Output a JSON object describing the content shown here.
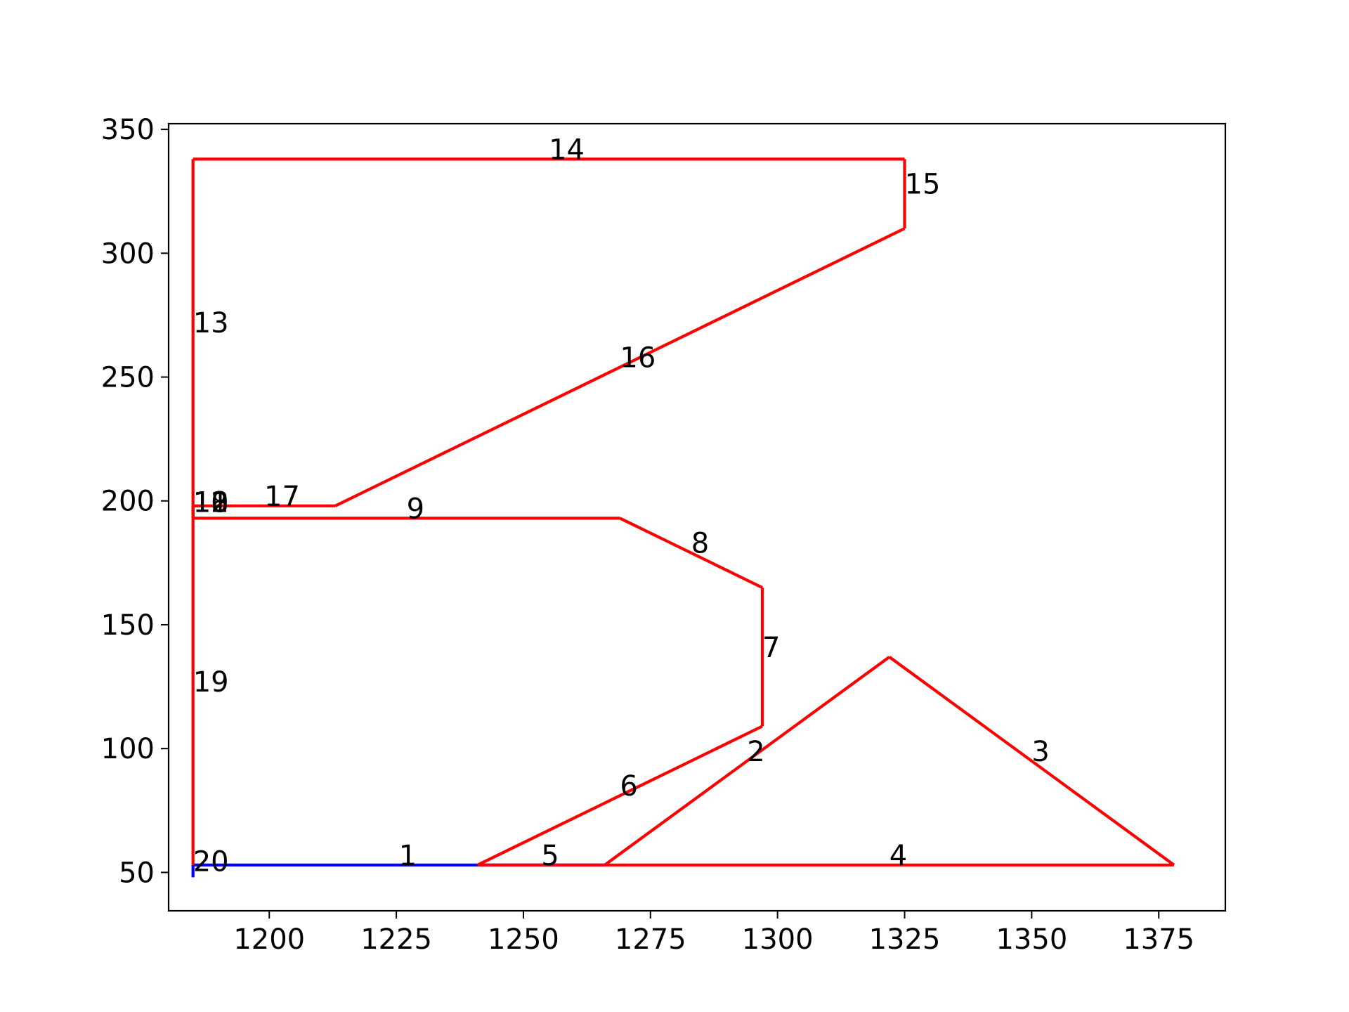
{
  "chart_data": {
    "type": "line",
    "title": "",
    "xlabel": "",
    "ylabel": "",
    "xlim": [
      1180.2,
      1388.1
    ],
    "ylim": [
      34.5,
      352.3
    ],
    "xticks": [
      1200,
      1225,
      1250,
      1275,
      1300,
      1325,
      1350,
      1375
    ],
    "yticks": [
      50,
      100,
      150,
      200,
      250,
      300,
      350
    ],
    "grid": false,
    "legend": "none",
    "colors": {
      "red": "#ff0000",
      "blue": "#0000ff"
    },
    "segments": [
      {
        "id": "1",
        "color": "blue",
        "points": [
          [
            1185,
            53
          ],
          [
            1266,
            53
          ]
        ]
      },
      {
        "id": "2",
        "color": "red",
        "points": [
          [
            1266,
            53
          ],
          [
            1322,
            137
          ]
        ]
      },
      {
        "id": "3",
        "color": "red",
        "points": [
          [
            1322,
            137
          ],
          [
            1378,
            53
          ]
        ]
      },
      {
        "id": "4",
        "color": "red",
        "points": [
          [
            1378,
            53
          ],
          [
            1266,
            53
          ]
        ]
      },
      {
        "id": "5",
        "color": "red",
        "points": [
          [
            1266,
            53
          ],
          [
            1241,
            53
          ]
        ]
      },
      {
        "id": "6",
        "color": "red",
        "points": [
          [
            1241,
            53
          ],
          [
            1297,
            109
          ]
        ]
      },
      {
        "id": "7",
        "color": "red",
        "points": [
          [
            1297,
            109
          ],
          [
            1297,
            165
          ]
        ]
      },
      {
        "id": "8",
        "color": "red",
        "points": [
          [
            1297,
            165
          ],
          [
            1269,
            193
          ]
        ]
      },
      {
        "id": "9",
        "color": "red",
        "points": [
          [
            1269,
            193
          ],
          [
            1185,
            193
          ]
        ]
      },
      {
        "id": "10",
        "color": "blue",
        "points": [
          [
            1185,
            193
          ],
          [
            1185,
            198
          ]
        ]
      },
      {
        "id": "11",
        "color": "red",
        "points": [
          [
            1185,
            193
          ],
          [
            1185,
            198
          ]
        ]
      },
      {
        "id": "12",
        "color": "red",
        "points": [
          [
            1185,
            198
          ],
          [
            1185,
            198
          ]
        ]
      },
      {
        "id": "13",
        "color": "red",
        "points": [
          [
            1185,
            198
          ],
          [
            1185,
            338
          ]
        ]
      },
      {
        "id": "14",
        "color": "red",
        "points": [
          [
            1185,
            338
          ],
          [
            1325,
            338
          ]
        ]
      },
      {
        "id": "15",
        "color": "red",
        "points": [
          [
            1325,
            338
          ],
          [
            1325,
            310
          ]
        ]
      },
      {
        "id": "16",
        "color": "red",
        "points": [
          [
            1325,
            310
          ],
          [
            1213,
            198
          ]
        ]
      },
      {
        "id": "17",
        "color": "red",
        "points": [
          [
            1213,
            198
          ],
          [
            1185,
            198
          ]
        ]
      },
      {
        "id": "18",
        "color": "red",
        "points": [
          [
            1185,
            198
          ],
          [
            1185,
            193
          ]
        ]
      },
      {
        "id": "19",
        "color": "red",
        "points": [
          [
            1185,
            193
          ],
          [
            1185,
            53
          ]
        ]
      },
      {
        "id": "20",
        "color": "blue",
        "points": [
          [
            1185,
            53
          ],
          [
            1185,
            48
          ]
        ]
      }
    ],
    "labels": [
      {
        "text": "1",
        "x": 1225.5,
        "y": 53
      },
      {
        "text": "2",
        "x": 1294,
        "y": 95
      },
      {
        "text": "3",
        "x": 1350,
        "y": 95
      },
      {
        "text": "4",
        "x": 1322,
        "y": 53
      },
      {
        "text": "5",
        "x": 1253.5,
        "y": 53
      },
      {
        "text": "6",
        "x": 1269,
        "y": 81
      },
      {
        "text": "7",
        "x": 1297,
        "y": 137
      },
      {
        "text": "8",
        "x": 1283,
        "y": 179
      },
      {
        "text": "9",
        "x": 1227,
        "y": 193
      },
      {
        "text": "10",
        "x": 1185,
        "y": 195.5
      },
      {
        "text": "11",
        "x": 1185,
        "y": 195.5
      },
      {
        "text": "12",
        "x": 1185,
        "y": 195.5
      },
      {
        "text": "13",
        "x": 1185,
        "y": 268
      },
      {
        "text": "14",
        "x": 1255,
        "y": 338
      },
      {
        "text": "15",
        "x": 1325,
        "y": 324
      },
      {
        "text": "16",
        "x": 1269,
        "y": 254
      },
      {
        "text": "17",
        "x": 1199,
        "y": 198
      },
      {
        "text": "18",
        "x": 1185,
        "y": 195.5
      },
      {
        "text": "19",
        "x": 1185,
        "y": 123
      },
      {
        "text": "20",
        "x": 1185,
        "y": 50.5
      }
    ]
  }
}
